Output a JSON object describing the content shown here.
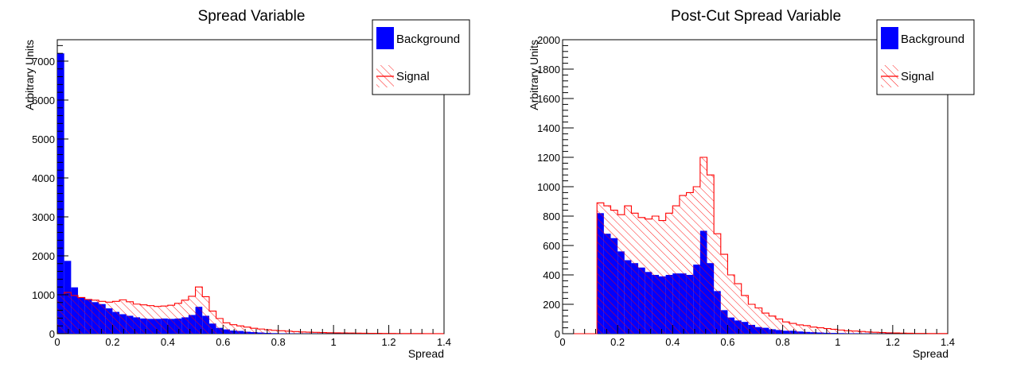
{
  "colors": {
    "background_fill": "#0000ff",
    "signal_line": "#ff0000",
    "axis": "#000000"
  },
  "chart_data": [
    {
      "type": "bar",
      "title": "Spread Variable",
      "xlabel": "Spread",
      "ylabel": "Arbitrary Units",
      "xlim": [
        0,
        1.4
      ],
      "ylim": [
        0,
        7550
      ],
      "xticks": [
        0,
        0.2,
        0.4,
        0.6,
        0.8,
        1,
        1.2,
        1.4
      ],
      "xtick_labels": [
        "0",
        "0.2",
        "0.4",
        "0.6",
        "0.8",
        "1",
        "1.2",
        "1.4"
      ],
      "yticks": [
        0,
        1000,
        2000,
        3000,
        4000,
        5000,
        6000,
        7000
      ],
      "ytick_labels": [
        "0",
        "1000",
        "2000",
        "3000",
        "4000",
        "5000",
        "6000",
        "7000"
      ],
      "bin_width": 0.025,
      "legend": {
        "position": "top-right",
        "entries": [
          "Background",
          "Signal"
        ]
      },
      "series": [
        {
          "name": "Background",
          "style": "filled",
          "values": [
            7200,
            1870,
            1190,
            920,
            880,
            810,
            760,
            650,
            560,
            500,
            460,
            420,
            390,
            380,
            380,
            390,
            380,
            390,
            420,
            480,
            690,
            460,
            260,
            150,
            110,
            80,
            70,
            50,
            40,
            30,
            20,
            15,
            10,
            8,
            6,
            5,
            4,
            4,
            3,
            2,
            2,
            2,
            1,
            1,
            1,
            1,
            0,
            0,
            0,
            0,
            0,
            0,
            0,
            0,
            0,
            0
          ]
        },
        {
          "name": "Signal",
          "style": "hatched",
          "values": [
            1000,
            1060,
            980,
            930,
            880,
            860,
            830,
            810,
            830,
            870,
            820,
            760,
            740,
            720,
            700,
            710,
            730,
            780,
            860,
            960,
            1200,
            950,
            580,
            390,
            280,
            230,
            200,
            170,
            140,
            120,
            100,
            85,
            75,
            65,
            55,
            45,
            40,
            35,
            30,
            25,
            22,
            20,
            18,
            15,
            12,
            10,
            8,
            7,
            6,
            5,
            4,
            3,
            3,
            2,
            2,
            1
          ]
        }
      ]
    },
    {
      "type": "bar",
      "title": "Post-Cut Spread Variable",
      "xlabel": "Spread",
      "ylabel": "Arbitrary Units",
      "xlim": [
        0,
        1.4
      ],
      "ylim": [
        0,
        2000
      ],
      "xticks": [
        0,
        0.2,
        0.4,
        0.6,
        0.8,
        1,
        1.2,
        1.4
      ],
      "xtick_labels": [
        "0",
        "0.2",
        "0.4",
        "0.6",
        "0.8",
        "1",
        "1.2",
        "1.4"
      ],
      "yticks": [
        0,
        200,
        400,
        600,
        800,
        1000,
        1200,
        1400,
        1600,
        1800,
        2000
      ],
      "ytick_labels": [
        "0",
        "200",
        "400",
        "600",
        "800",
        "1000",
        "1200",
        "1400",
        "1600",
        "1800",
        "2000"
      ],
      "bin_width": 0.025,
      "legend": {
        "position": "top-right",
        "entries": [
          "Background",
          "Signal"
        ]
      },
      "series": [
        {
          "name": "Background",
          "style": "filled",
          "values": [
            0,
            0,
            0,
            0,
            0,
            820,
            680,
            650,
            560,
            500,
            480,
            450,
            420,
            400,
            390,
            400,
            410,
            410,
            400,
            470,
            700,
            480,
            290,
            160,
            110,
            90,
            80,
            60,
            45,
            40,
            30,
            25,
            20,
            20,
            15,
            12,
            10,
            8,
            6,
            5,
            4,
            3,
            3,
            2,
            2,
            1,
            1,
            1,
            0,
            0,
            0,
            0,
            0,
            0,
            0,
            0
          ]
        },
        {
          "name": "Signal",
          "style": "hatched",
          "values": [
            0,
            0,
            0,
            0,
            0,
            890,
            870,
            840,
            810,
            870,
            820,
            790,
            780,
            800,
            770,
            820,
            870,
            940,
            960,
            1000,
            1200,
            1080,
            680,
            540,
            400,
            340,
            260,
            200,
            175,
            140,
            120,
            100,
            80,
            70,
            60,
            55,
            45,
            40,
            35,
            30,
            25,
            20,
            18,
            15,
            12,
            10,
            8,
            6,
            5,
            4,
            3,
            2,
            2,
            1,
            1,
            1
          ]
        }
      ]
    }
  ]
}
